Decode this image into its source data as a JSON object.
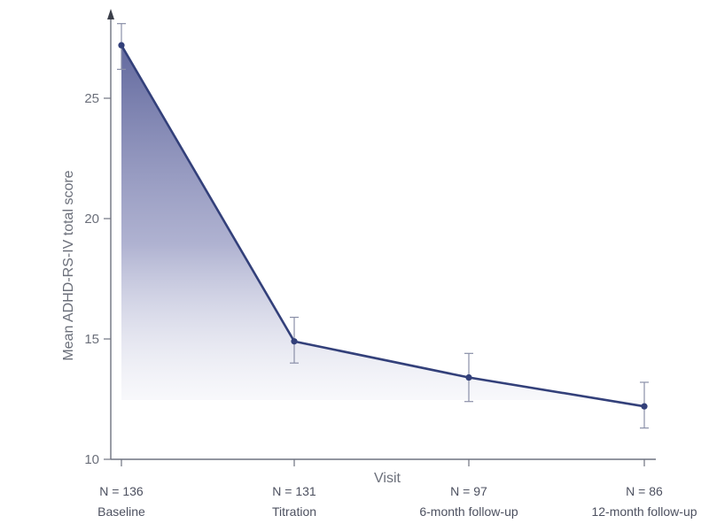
{
  "chart_data": {
    "type": "line",
    "title": "",
    "xlabel": "Visit",
    "ylabel": "Mean ADHD-RS-IV total score",
    "ylim": [
      10,
      28
    ],
    "yticks": [
      10,
      15,
      20,
      25
    ],
    "categories": [
      "Baseline",
      "Titration",
      "6-month follow-up",
      "12-month follow-up"
    ],
    "sample_sizes": [
      "N = 136",
      "N = 131",
      "N = 97",
      "N = 86"
    ],
    "series": [
      {
        "values": [
          27.2,
          14.9,
          13.4,
          12.2
        ],
        "error_low": [
          26.2,
          14.0,
          12.4,
          11.3
        ],
        "error_high": [
          28.1,
          15.9,
          14.4,
          13.2
        ]
      }
    ],
    "grid": false,
    "shaded_area": true,
    "colors": {
      "line": "#33407a",
      "fill_top": "#5a6199",
      "axis": "#6f7380",
      "text": "#6b6f7a"
    }
  }
}
